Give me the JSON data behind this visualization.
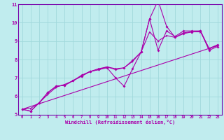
{
  "xlabel": "Windchill (Refroidissement éolien,°C)",
  "x_ticks": [
    0,
    1,
    2,
    3,
    4,
    5,
    6,
    7,
    8,
    9,
    10,
    11,
    12,
    13,
    14,
    15,
    16,
    17,
    18,
    19,
    20,
    21,
    22,
    23
  ],
  "ylim": [
    5.0,
    11.0
  ],
  "xlim": [
    -0.5,
    23.5
  ],
  "yticks": [
    5,
    6,
    7,
    8,
    9,
    10,
    11
  ],
  "bg_color": "#c0ecee",
  "grid_color": "#a0d8dc",
  "line_color": "#aa00aa",
  "line1_x": [
    0,
    1,
    2,
    3,
    4,
    5,
    6,
    7,
    8,
    9,
    10,
    11,
    12,
    13,
    14,
    15,
    16,
    17,
    18,
    19,
    20,
    21,
    22,
    23
  ],
  "line1_y": [
    5.3,
    5.2,
    5.65,
    6.2,
    6.55,
    6.6,
    6.85,
    7.1,
    7.35,
    7.45,
    7.55,
    7.0,
    6.55,
    7.5,
    8.4,
    10.2,
    11.2,
    9.8,
    9.2,
    9.4,
    9.5,
    9.55,
    8.5,
    8.7
  ],
  "line2_x": [
    0,
    1,
    2,
    3,
    4,
    5,
    6,
    7,
    8,
    9,
    10,
    11,
    12,
    13,
    14,
    15,
    16,
    17,
    18,
    19,
    20,
    21,
    22,
    23
  ],
  "line2_y": [
    5.3,
    5.2,
    5.65,
    6.2,
    6.55,
    6.6,
    6.85,
    7.15,
    7.35,
    7.45,
    7.6,
    7.45,
    7.55,
    7.95,
    8.4,
    10.2,
    8.5,
    9.55,
    9.25,
    9.55,
    9.55,
    9.55,
    8.6,
    8.8
  ],
  "line3_x": [
    0,
    1,
    2,
    3,
    4,
    5,
    6,
    7,
    8,
    9,
    10,
    11,
    12,
    13,
    14,
    15,
    16,
    17,
    18,
    19,
    20,
    21,
    22,
    23
  ],
  "line3_y": [
    5.3,
    5.35,
    5.65,
    6.1,
    6.5,
    6.65,
    6.85,
    7.1,
    7.35,
    7.5,
    7.6,
    7.5,
    7.55,
    7.9,
    8.4,
    9.5,
    9.0,
    9.3,
    9.2,
    9.45,
    9.5,
    9.5,
    8.6,
    8.75
  ],
  "line4_x": [
    0,
    23
  ],
  "line4_y": [
    5.3,
    8.75
  ]
}
